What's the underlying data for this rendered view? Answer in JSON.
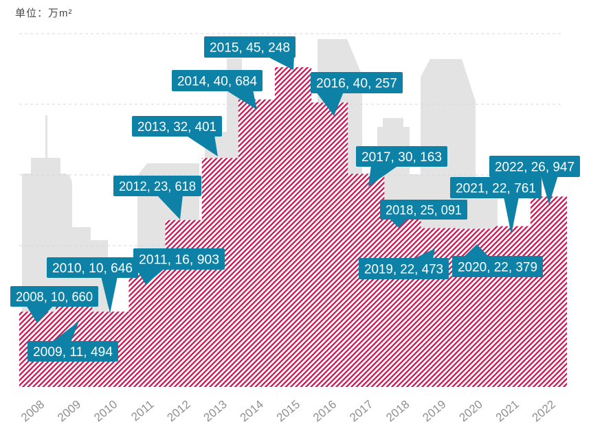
{
  "unit_label": "单位：万m²",
  "colors": {
    "area_hatch_red": "#d01452",
    "callout_teal": "#0e82a6",
    "callout_text": "#ffffff",
    "building_gray": "#e3e3e3",
    "gridline_gray": "#d6d6d6",
    "axis_label_gray": "#8f8f8f",
    "unit_label_gray": "#4a4a4a"
  },
  "chart_data": {
    "type": "area",
    "style": "step-histogram area filled with diagonal red hatch, city-skyline background",
    "title": "",
    "unit": "万m²",
    "categories": [
      "2008",
      "2009",
      "2010",
      "2011",
      "2012",
      "2013",
      "2014",
      "2015",
      "2016",
      "2017",
      "2018",
      "2019",
      "2020",
      "2021",
      "2022"
    ],
    "values": [
      10660,
      11494,
      10646,
      16903,
      23618,
      32401,
      40684,
      45248,
      40257,
      30163,
      25091,
      22473,
      22379,
      22761,
      26947
    ],
    "ylim": [
      0,
      50000
    ],
    "gridline_values": [
      10000,
      20000,
      30000,
      40000,
      50000
    ],
    "grid": "dashed horizontal",
    "legend": "none",
    "xlabel": "",
    "ylabel": ""
  },
  "callouts": [
    {
      "label": "2008,  10, 660"
    },
    {
      "label": "2009,  11, 494"
    },
    {
      "label": "2010,  10, 646"
    },
    {
      "label": "2011,  16, 903"
    },
    {
      "label": "2012,  23, 618"
    },
    {
      "label": "2013,  32, 401"
    },
    {
      "label": "2014,  40, 684"
    },
    {
      "label": "2015,  45, 248"
    },
    {
      "label": "2016,  40, 257"
    },
    {
      "label": "2017,  30, 163"
    },
    {
      "label": "2018,  25, 091"
    },
    {
      "label": "2019,  22, 473"
    },
    {
      "label": "2020,  22, 379"
    },
    {
      "label": "2021,  22, 761"
    },
    {
      "label": "2022,  26, 947"
    }
  ]
}
